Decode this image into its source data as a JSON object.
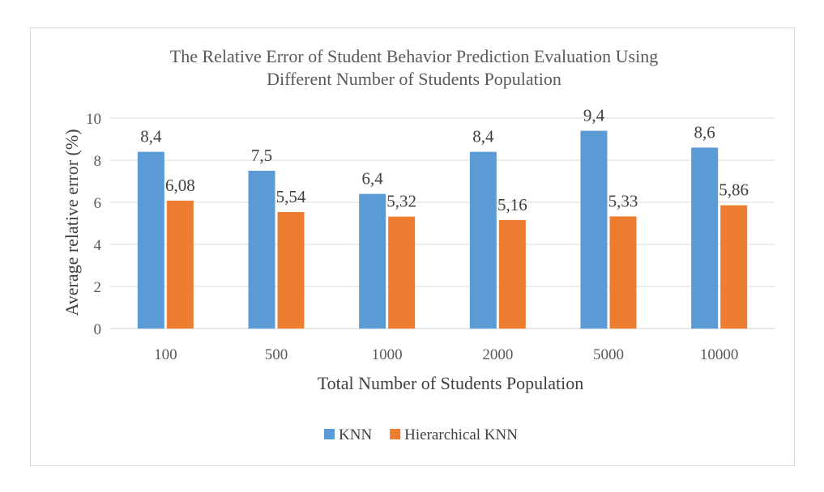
{
  "chart_data": {
    "type": "bar",
    "title_lines": [
      "The Relative Error of Student Behavior Prediction Evaluation Using",
      "Different Number of Students Population"
    ],
    "xlabel": "Total Number of Students Population",
    "ylabel": "Average relative error (%)",
    "ylim": [
      0,
      10
    ],
    "yticks": [
      "0",
      "2",
      "4",
      "6",
      "8",
      "10"
    ],
    "grid": true,
    "legend_position": "bottom",
    "categories": [
      "100",
      "500",
      "1000",
      "2000",
      "5000",
      "10000"
    ],
    "series": [
      {
        "name": "KNN",
        "color": "#5b9bd5",
        "values": [
          8.4,
          7.5,
          6.4,
          8.4,
          9.4,
          8.6
        ],
        "labels": [
          "8,4",
          "7,5",
          "6,4",
          "8,4",
          "9,4",
          "8,6"
        ]
      },
      {
        "name": "Hierarchical KNN",
        "color": "#ed7d31",
        "values": [
          6.08,
          5.54,
          5.32,
          5.16,
          5.33,
          5.86
        ],
        "labels": [
          "6,08",
          "5,54",
          "5,32",
          "5,16",
          "5,33",
          "5,86"
        ]
      }
    ]
  }
}
